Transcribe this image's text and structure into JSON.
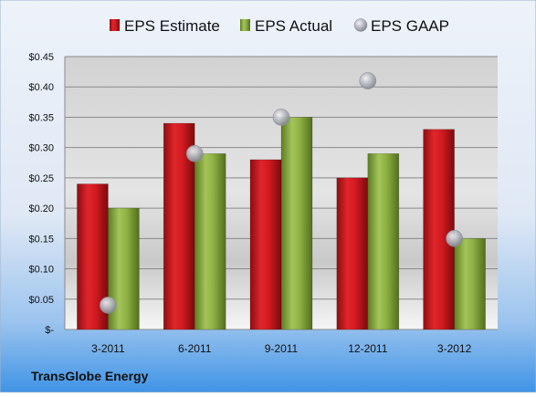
{
  "company_label": "TransGlobe Energy",
  "colors": {
    "estimate": "#c0161b",
    "actual": "#86a83a",
    "gaap": "#b9bcc4",
    "background_top": "#e2eaf6",
    "background_bottom": "#3f94e6",
    "plot_top": "#d7d7d7",
    "plot_bottom": "#f7f7f7"
  },
  "chart_data": {
    "type": "bar",
    "categories": [
      "3-2011",
      "6-2011",
      "9-2011",
      "12-2011",
      "3-2012"
    ],
    "series": [
      {
        "name": "EPS Estimate",
        "kind": "bar",
        "values": [
          0.24,
          0.34,
          0.28,
          0.25,
          0.33
        ]
      },
      {
        "name": "EPS Actual",
        "kind": "bar",
        "values": [
          0.2,
          0.29,
          0.35,
          0.29,
          0.15
        ]
      },
      {
        "name": "EPS GAAP",
        "kind": "scatter",
        "values": [
          0.04,
          0.29,
          0.35,
          0.41,
          0.15
        ]
      }
    ],
    "ylim": [
      0,
      0.45
    ],
    "yticks": [
      0,
      0.05,
      0.1,
      0.15,
      0.2,
      0.25,
      0.3,
      0.35,
      0.4,
      0.45
    ],
    "ytick_labels": [
      "$-",
      "$0.05",
      "$0.10",
      "$0.15",
      "$0.20",
      "$0.25",
      "$0.30",
      "$0.35",
      "$0.40",
      "$0.45"
    ],
    "legend_position": "top",
    "grid": true
  }
}
